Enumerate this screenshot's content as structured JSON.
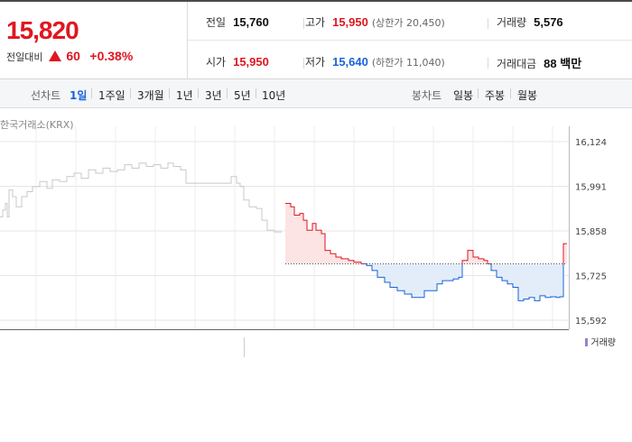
{
  "price": {
    "current": "15,820",
    "change_label": "전일대비",
    "change_value": "60",
    "change_percent": "+0.38%",
    "color_up": "#e0161f"
  },
  "stats": {
    "prev_close": {
      "label": "전일",
      "value": "15,760"
    },
    "high": {
      "label": "고가",
      "value": "15,950",
      "sub": "(상한가 20,450)"
    },
    "volume": {
      "label": "거래량",
      "value": "5,576"
    },
    "open": {
      "label": "시가",
      "value": "15,950"
    },
    "low": {
      "label": "저가",
      "value": "15,640",
      "sub": "(하한가 11,040)"
    },
    "amount": {
      "label": "거래대금",
      "value": "88 백만"
    }
  },
  "period_bar": {
    "line_label": "선차트",
    "line_items": [
      "1일",
      "1주일",
      "3개월",
      "1년",
      "3년",
      "5년",
      "10년"
    ],
    "active": "1일",
    "candle_label": "봉차트",
    "candle_items": [
      "일봉",
      "주봉",
      "월봉"
    ]
  },
  "market_label": "한국거래소(KRX)",
  "volume_legend": "거래량",
  "chart_data": {
    "type": "line",
    "yticks": [
      "16,124",
      "15,991",
      "15,858",
      "15,725",
      "15,592"
    ],
    "ylim": [
      15592,
      16124
    ],
    "baseline": 15760,
    "prev_day_series": [
      [
        0,
        15900
      ],
      [
        3,
        15920
      ],
      [
        6,
        15940
      ],
      [
        8,
        15900
      ],
      [
        10,
        15980
      ],
      [
        14,
        15960
      ],
      [
        18,
        15930
      ],
      [
        24,
        15960
      ],
      [
        30,
        15975
      ],
      [
        36,
        15990
      ],
      [
        44,
        16005
      ],
      [
        52,
        15985
      ],
      [
        58,
        16010
      ],
      [
        66,
        16005
      ],
      [
        74,
        16020
      ],
      [
        82,
        16030
      ],
      [
        90,
        16015
      ],
      [
        98,
        16040
      ],
      [
        106,
        16030
      ],
      [
        114,
        16045
      ],
      [
        122,
        16035
      ],
      [
        130,
        16040
      ],
      [
        138,
        16055
      ],
      [
        146,
        16045
      ],
      [
        154,
        16060
      ],
      [
        162,
        16050
      ],
      [
        170,
        16055
      ],
      [
        178,
        16045
      ],
      [
        186,
        16060
      ],
      [
        192,
        16050
      ],
      [
        200,
        16040
      ],
      [
        206,
        16000
      ],
      [
        214,
        16000
      ],
      [
        222,
        16000
      ],
      [
        230,
        16000
      ],
      [
        238,
        16000
      ],
      [
        246,
        16000
      ],
      [
        252,
        16000
      ],
      [
        256,
        16020
      ],
      [
        262,
        16000
      ],
      [
        266,
        15990
      ],
      [
        270,
        15950
      ],
      [
        276,
        15930
      ],
      [
        284,
        15925
      ],
      [
        290,
        15890
      ],
      [
        296,
        15860
      ],
      [
        304,
        15855
      ],
      [
        312,
        15855
      ]
    ],
    "today_series": [
      [
        316,
        15940
      ],
      [
        322,
        15930
      ],
      [
        326,
        15905
      ],
      [
        332,
        15910
      ],
      [
        336,
        15890
      ],
      [
        340,
        15860
      ],
      [
        346,
        15880
      ],
      [
        350,
        15860
      ],
      [
        356,
        15850
      ],
      [
        360,
        15800
      ],
      [
        366,
        15790
      ],
      [
        372,
        15780
      ],
      [
        378,
        15775
      ],
      [
        386,
        15770
      ],
      [
        392,
        15765
      ],
      [
        400,
        15760
      ],
      [
        406,
        15755
      ],
      [
        412,
        15740
      ],
      [
        418,
        15720
      ],
      [
        426,
        15705
      ],
      [
        432,
        15690
      ],
      [
        440,
        15680
      ],
      [
        448,
        15670
      ],
      [
        456,
        15660
      ],
      [
        464,
        15660
      ],
      [
        470,
        15680
      ],
      [
        476,
        15680
      ],
      [
        484,
        15700
      ],
      [
        490,
        15710
      ],
      [
        496,
        15710
      ],
      [
        502,
        15715
      ],
      [
        508,
        15720
      ],
      [
        512,
        15770
      ],
      [
        518,
        15800
      ],
      [
        524,
        15780
      ],
      [
        530,
        15775
      ],
      [
        536,
        15770
      ],
      [
        540,
        15760
      ],
      [
        544,
        15740
      ],
      [
        550,
        15720
      ],
      [
        556,
        15710
      ],
      [
        562,
        15700
      ],
      [
        568,
        15690
      ],
      [
        574,
        15650
      ],
      [
        580,
        15655
      ],
      [
        586,
        15660
      ],
      [
        592,
        15650
      ],
      [
        598,
        15665
      ],
      [
        604,
        15660
      ],
      [
        610,
        15662
      ],
      [
        616,
        15660
      ],
      [
        620,
        15662
      ],
      [
        624,
        15820
      ],
      [
        628,
        15820
      ]
    ]
  }
}
